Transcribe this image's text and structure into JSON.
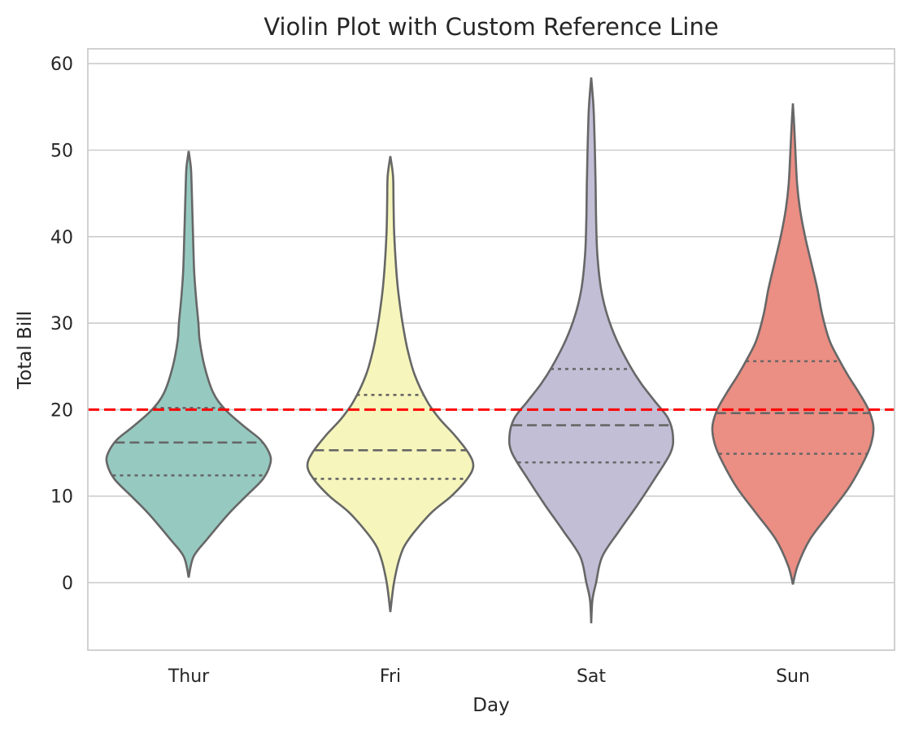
{
  "chart_data": {
    "type": "violin",
    "title": "Violin Plot with Custom Reference Line",
    "xlabel": "Day",
    "ylabel": "Total Bill",
    "ylim": [
      -7.8,
      61.8
    ],
    "yticks": [
      0,
      10,
      20,
      30,
      40,
      50,
      60
    ],
    "grid": "horizontal",
    "inner": "quartile",
    "reference_line": {
      "y": 20,
      "color": "#ff0000",
      "style": "dashed"
    },
    "categories": [
      "Thur",
      "Fri",
      "Sat",
      "Sun"
    ],
    "violins": [
      {
        "category": "Thur",
        "color": "#96cac1",
        "min": 0.6,
        "max": 49.9,
        "q1": 12.4,
        "median": 16.2,
        "q3": 20.2,
        "profile": [
          [
            0.6,
            0
          ],
          [
            3,
            0.04
          ],
          [
            5,
            0.15
          ],
          [
            8,
            0.33
          ],
          [
            10,
            0.47
          ],
          [
            12,
            0.61
          ],
          [
            13.8,
            0.67
          ],
          [
            15,
            0.66
          ],
          [
            16.5,
            0.59
          ],
          [
            18,
            0.46
          ],
          [
            20,
            0.3
          ],
          [
            22,
            0.2
          ],
          [
            25,
            0.13
          ],
          [
            28,
            0.09
          ],
          [
            30,
            0.08
          ],
          [
            33,
            0.06
          ],
          [
            36,
            0.045
          ],
          [
            40,
            0.036
          ],
          [
            43,
            0.03
          ],
          [
            46,
            0.024
          ],
          [
            48,
            0.018
          ],
          [
            49.9,
            0
          ]
        ]
      },
      {
        "category": "Fri",
        "color": "#f6f6bc",
        "min": -3.4,
        "max": 49.3,
        "q1": 12.0,
        "median": 15.3,
        "q3": 21.7,
        "profile": [
          [
            -3.4,
            0
          ],
          [
            0,
            0.03
          ],
          [
            3,
            0.08
          ],
          [
            5,
            0.15
          ],
          [
            8,
            0.33
          ],
          [
            10,
            0.5
          ],
          [
            12,
            0.63
          ],
          [
            13.5,
            0.68
          ],
          [
            15,
            0.64
          ],
          [
            17,
            0.53
          ],
          [
            19,
            0.4
          ],
          [
            21,
            0.3
          ],
          [
            24,
            0.2
          ],
          [
            27,
            0.14
          ],
          [
            30,
            0.1
          ],
          [
            33,
            0.07
          ],
          [
            35,
            0.055
          ],
          [
            38,
            0.04
          ],
          [
            41,
            0.03
          ],
          [
            44,
            0.026
          ],
          [
            47,
            0.022
          ],
          [
            49.3,
            0
          ]
        ]
      },
      {
        "category": "Sat",
        "color": "#c1bed6",
        "min": -4.7,
        "max": 58.4,
        "q1": 13.9,
        "median": 18.2,
        "q3": 24.7,
        "profile": [
          [
            -4.7,
            0
          ],
          [
            -2,
            0.01
          ],
          [
            0,
            0.04
          ],
          [
            3,
            0.09
          ],
          [
            6,
            0.23
          ],
          [
            9,
            0.38
          ],
          [
            12,
            0.52
          ],
          [
            15,
            0.65
          ],
          [
            17,
            0.67
          ],
          [
            19,
            0.63
          ],
          [
            21,
            0.52
          ],
          [
            23,
            0.41
          ],
          [
            25,
            0.32
          ],
          [
            28,
            0.21
          ],
          [
            31,
            0.13
          ],
          [
            34,
            0.08
          ],
          [
            38,
            0.05
          ],
          [
            42,
            0.04
          ],
          [
            46,
            0.036
          ],
          [
            50,
            0.03
          ],
          [
            54,
            0.022
          ],
          [
            56,
            0.014
          ],
          [
            58.4,
            0
          ]
        ]
      },
      {
        "category": "Sun",
        "color": "#eb8e84",
        "min": -0.2,
        "max": 55.4,
        "q1": 14.9,
        "median": 19.6,
        "q3": 25.6,
        "profile": [
          [
            -0.2,
            0
          ],
          [
            2,
            0.04
          ],
          [
            5,
            0.14
          ],
          [
            8,
            0.3
          ],
          [
            11,
            0.46
          ],
          [
            14,
            0.58
          ],
          [
            16,
            0.64
          ],
          [
            18,
            0.66
          ],
          [
            20,
            0.62
          ],
          [
            22,
            0.54
          ],
          [
            24,
            0.45
          ],
          [
            26,
            0.37
          ],
          [
            28,
            0.3
          ],
          [
            31,
            0.24
          ],
          [
            34,
            0.2
          ],
          [
            37,
            0.15
          ],
          [
            40,
            0.1
          ],
          [
            43,
            0.06
          ],
          [
            46,
            0.035
          ],
          [
            50,
            0.02
          ],
          [
            53,
            0.01
          ],
          [
            55.4,
            0
          ]
        ]
      }
    ]
  }
}
